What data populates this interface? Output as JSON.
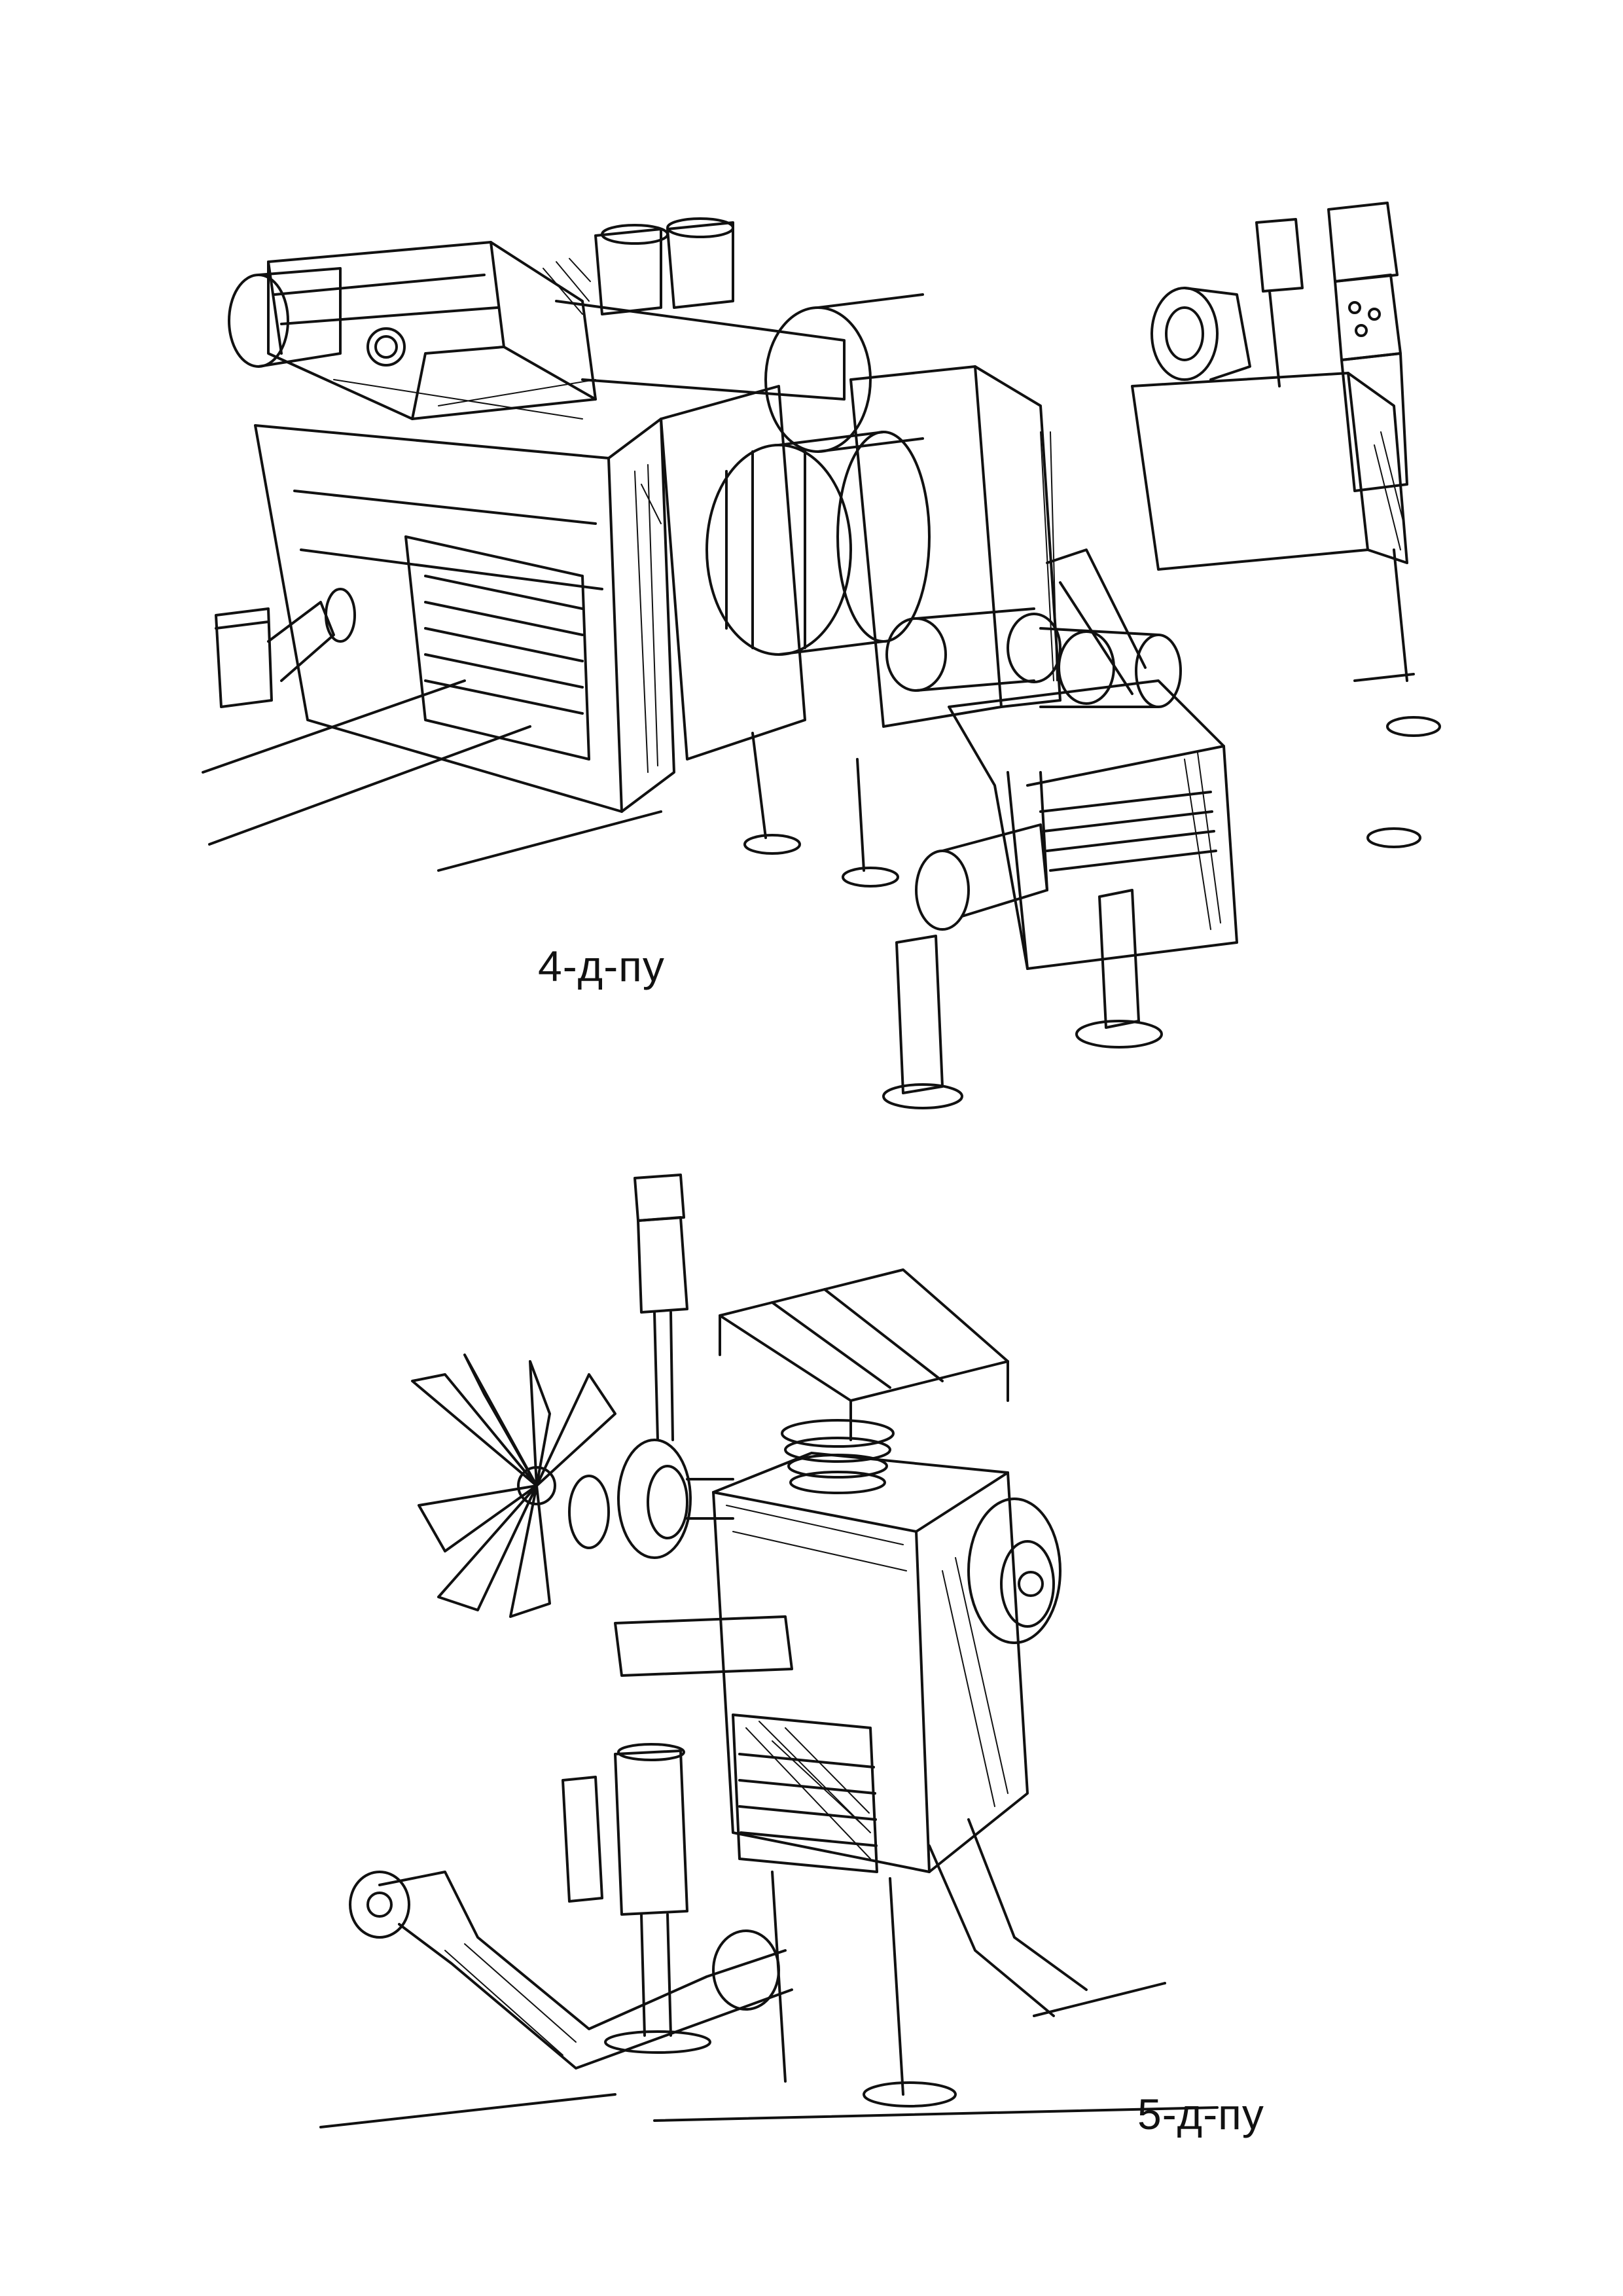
{
  "sketches": [
    {
      "caption": "4-д-пу"
    },
    {
      "caption": "5-д-пу"
    }
  ],
  "colors": {
    "ink": "#111111",
    "paper": "#ffffff"
  }
}
